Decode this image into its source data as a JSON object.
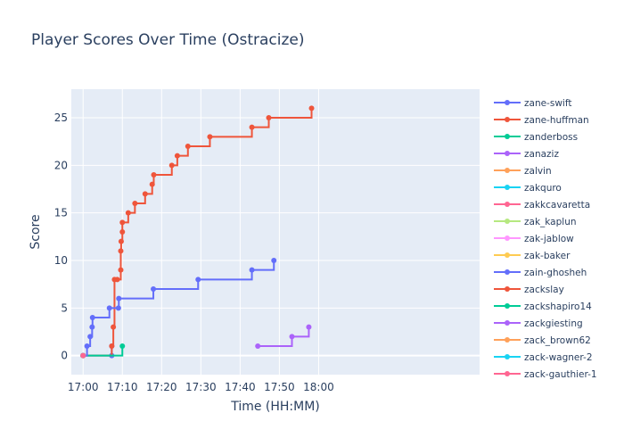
{
  "chart_data": {
    "type": "line",
    "title": "Player Scores Over Time (Ostracize)",
    "xlabel": "Time (HH:MM)",
    "ylabel": "Score",
    "line_shape": "step",
    "x_unit": "minutes after 17:00",
    "xlim": [
      -3,
      101
    ],
    "ylim": [
      -2,
      28
    ],
    "x_ticks": [
      {
        "value": 0,
        "label": "17:00"
      },
      {
        "value": 10,
        "label": "17:10"
      },
      {
        "value": 20,
        "label": "17:20"
      },
      {
        "value": 30,
        "label": "17:30"
      },
      {
        "value": 40,
        "label": "17:40"
      },
      {
        "value": 50,
        "label": "17:50"
      },
      {
        "value": 60,
        "label": "18:00"
      }
    ],
    "y_ticks": [
      0,
      5,
      10,
      15,
      20,
      25
    ],
    "grid": true,
    "background": "#e5ecf6",
    "legend_position": "right",
    "series": [
      {
        "name": "zane-swift",
        "color": "#636efa",
        "points": [
          [
            0,
            0
          ],
          [
            7.3,
            1
          ],
          [
            7.3,
            0
          ]
        ]
      },
      {
        "name": "zane-huffman",
        "color": "#ef553b",
        "points": [
          [
            0,
            0
          ],
          [
            7.3,
            1
          ],
          [
            7.7,
            3
          ],
          [
            8.0,
            8
          ],
          [
            8.7,
            8
          ],
          [
            9.6,
            9
          ],
          [
            9.6,
            11
          ],
          [
            9.7,
            12
          ],
          [
            10.0,
            13
          ],
          [
            10.0,
            14
          ],
          [
            11.5,
            15
          ],
          [
            13.2,
            16
          ],
          [
            15.8,
            17
          ],
          [
            17.6,
            18
          ],
          [
            18.0,
            19
          ],
          [
            22.6,
            20
          ],
          [
            24.0,
            21
          ],
          [
            26.7,
            22
          ],
          [
            32.3,
            23
          ],
          [
            43.0,
            24
          ],
          [
            47.3,
            25
          ],
          [
            58.2,
            26
          ]
        ]
      },
      {
        "name": "zanderboss",
        "color": "#00cc96",
        "points": [
          [
            0,
            0
          ],
          [
            10.0,
            1
          ]
        ]
      },
      {
        "name": "zanaziz",
        "color": "#ab63fa",
        "points": [
          [
            44.5,
            1
          ],
          [
            53.2,
            2
          ],
          [
            57.5,
            3
          ]
        ]
      },
      {
        "name": "zalvin",
        "color": "#ffa15a",
        "points": [
          [
            0,
            0
          ]
        ]
      },
      {
        "name": "zakquro",
        "color": "#19d3f3",
        "points": [
          [
            0,
            0
          ]
        ]
      },
      {
        "name": "zakkcavaretta",
        "color": "#ff6692",
        "points": [
          [
            0,
            0
          ]
        ]
      },
      {
        "name": "zak_kaplun",
        "color": "#b6e880",
        "points": [
          [
            0,
            0
          ]
        ]
      },
      {
        "name": "zak-jablow",
        "color": "#ff97ff",
        "points": [
          [
            0,
            0
          ]
        ]
      },
      {
        "name": "zak-baker",
        "color": "#fecb52",
        "points": [
          [
            0,
            0
          ]
        ]
      },
      {
        "name": "zain-ghosheh",
        "color": "#636efa",
        "points": [
          [
            0,
            0
          ],
          [
            1.0,
            1
          ],
          [
            1.8,
            2
          ],
          [
            2.3,
            3
          ],
          [
            2.4,
            4
          ],
          [
            6.7,
            5
          ],
          [
            9.0,
            5
          ],
          [
            9.1,
            6
          ],
          [
            17.9,
            7
          ],
          [
            29.3,
            8
          ],
          [
            43.0,
            9
          ],
          [
            48.6,
            10
          ]
        ]
      },
      {
        "name": "zackslay",
        "color": "#ef553b",
        "points": [
          [
            0,
            0
          ]
        ]
      },
      {
        "name": "zackshapiro14",
        "color": "#00cc96",
        "points": [
          [
            0,
            0
          ]
        ]
      },
      {
        "name": "zackgiesting",
        "color": "#ab63fa",
        "points": [
          [
            0,
            0
          ]
        ]
      },
      {
        "name": "zack_brown62",
        "color": "#ffa15a",
        "points": [
          [
            0,
            0
          ]
        ]
      },
      {
        "name": "zack-wagner-2",
        "color": "#19d3f3",
        "points": [
          [
            0,
            0
          ]
        ]
      },
      {
        "name": "zack-gauthier-1",
        "color": "#ff6692",
        "points": [
          [
            0,
            0
          ]
        ]
      }
    ]
  }
}
